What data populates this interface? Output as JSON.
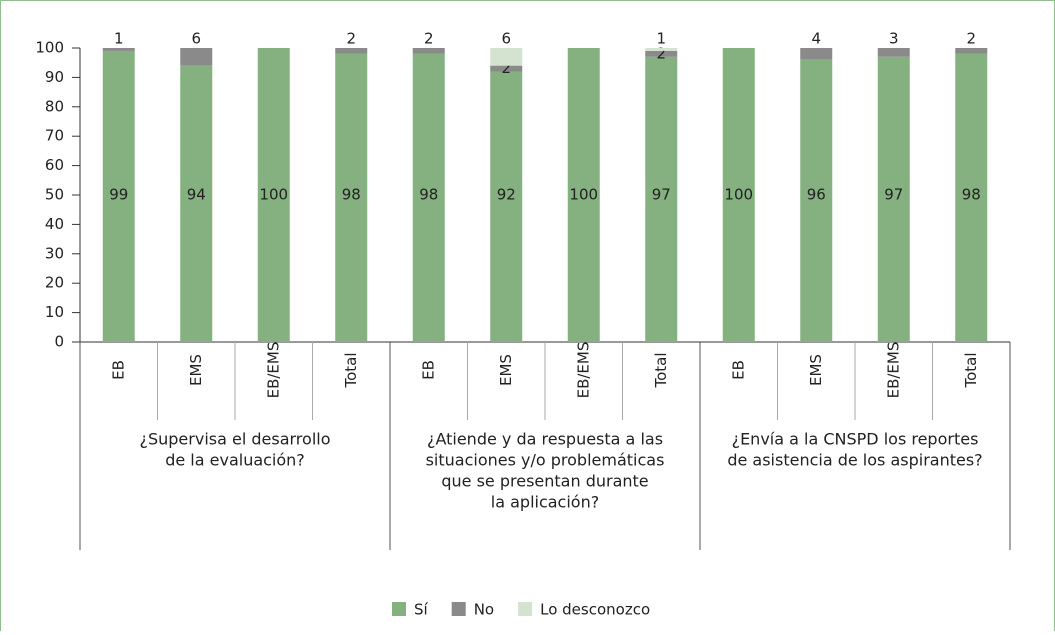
{
  "chart_data": {
    "type": "stacked_bar",
    "categories": [
      "EB",
      "EMS",
      "EB/EMS",
      "Total",
      "EB",
      "EMS",
      "EB/EMS",
      "Total",
      "EB",
      "EMS",
      "EB/EMS",
      "Total"
    ],
    "groups": [
      {
        "label": [
          "¿Supervisa el desarrollo",
          "de la evaluación?"
        ],
        "size": 4
      },
      {
        "label": [
          "¿Atiende y da respuesta a las",
          "situaciones y/o problemáticas",
          "que se presentan durante",
          "la aplicación?"
        ],
        "size": 4
      },
      {
        "label": [
          "¿Envía a la CNSPD los reportes",
          "de asistencia de los aspirantes?"
        ],
        "size": 4
      }
    ],
    "series": [
      {
        "name": "Sí",
        "color": "#84b17f",
        "values": [
          99,
          94,
          100,
          98,
          98,
          92,
          100,
          97,
          100,
          96,
          97,
          98
        ]
      },
      {
        "name": "No",
        "color": "#8a8a8a",
        "values": [
          1,
          6,
          0,
          2,
          2,
          2,
          0,
          2,
          0,
          4,
          3,
          2
        ]
      },
      {
        "name": "Lo desconozco",
        "color": "#d3e3cf",
        "values": [
          0,
          0,
          0,
          0,
          0,
          6,
          0,
          1,
          0,
          0,
          0,
          0
        ]
      }
    ],
    "ylim": [
      0,
      100
    ],
    "yticks": [
      0,
      10,
      20,
      30,
      40,
      50,
      60,
      70,
      80,
      90,
      100
    ],
    "legend": "bottom"
  }
}
